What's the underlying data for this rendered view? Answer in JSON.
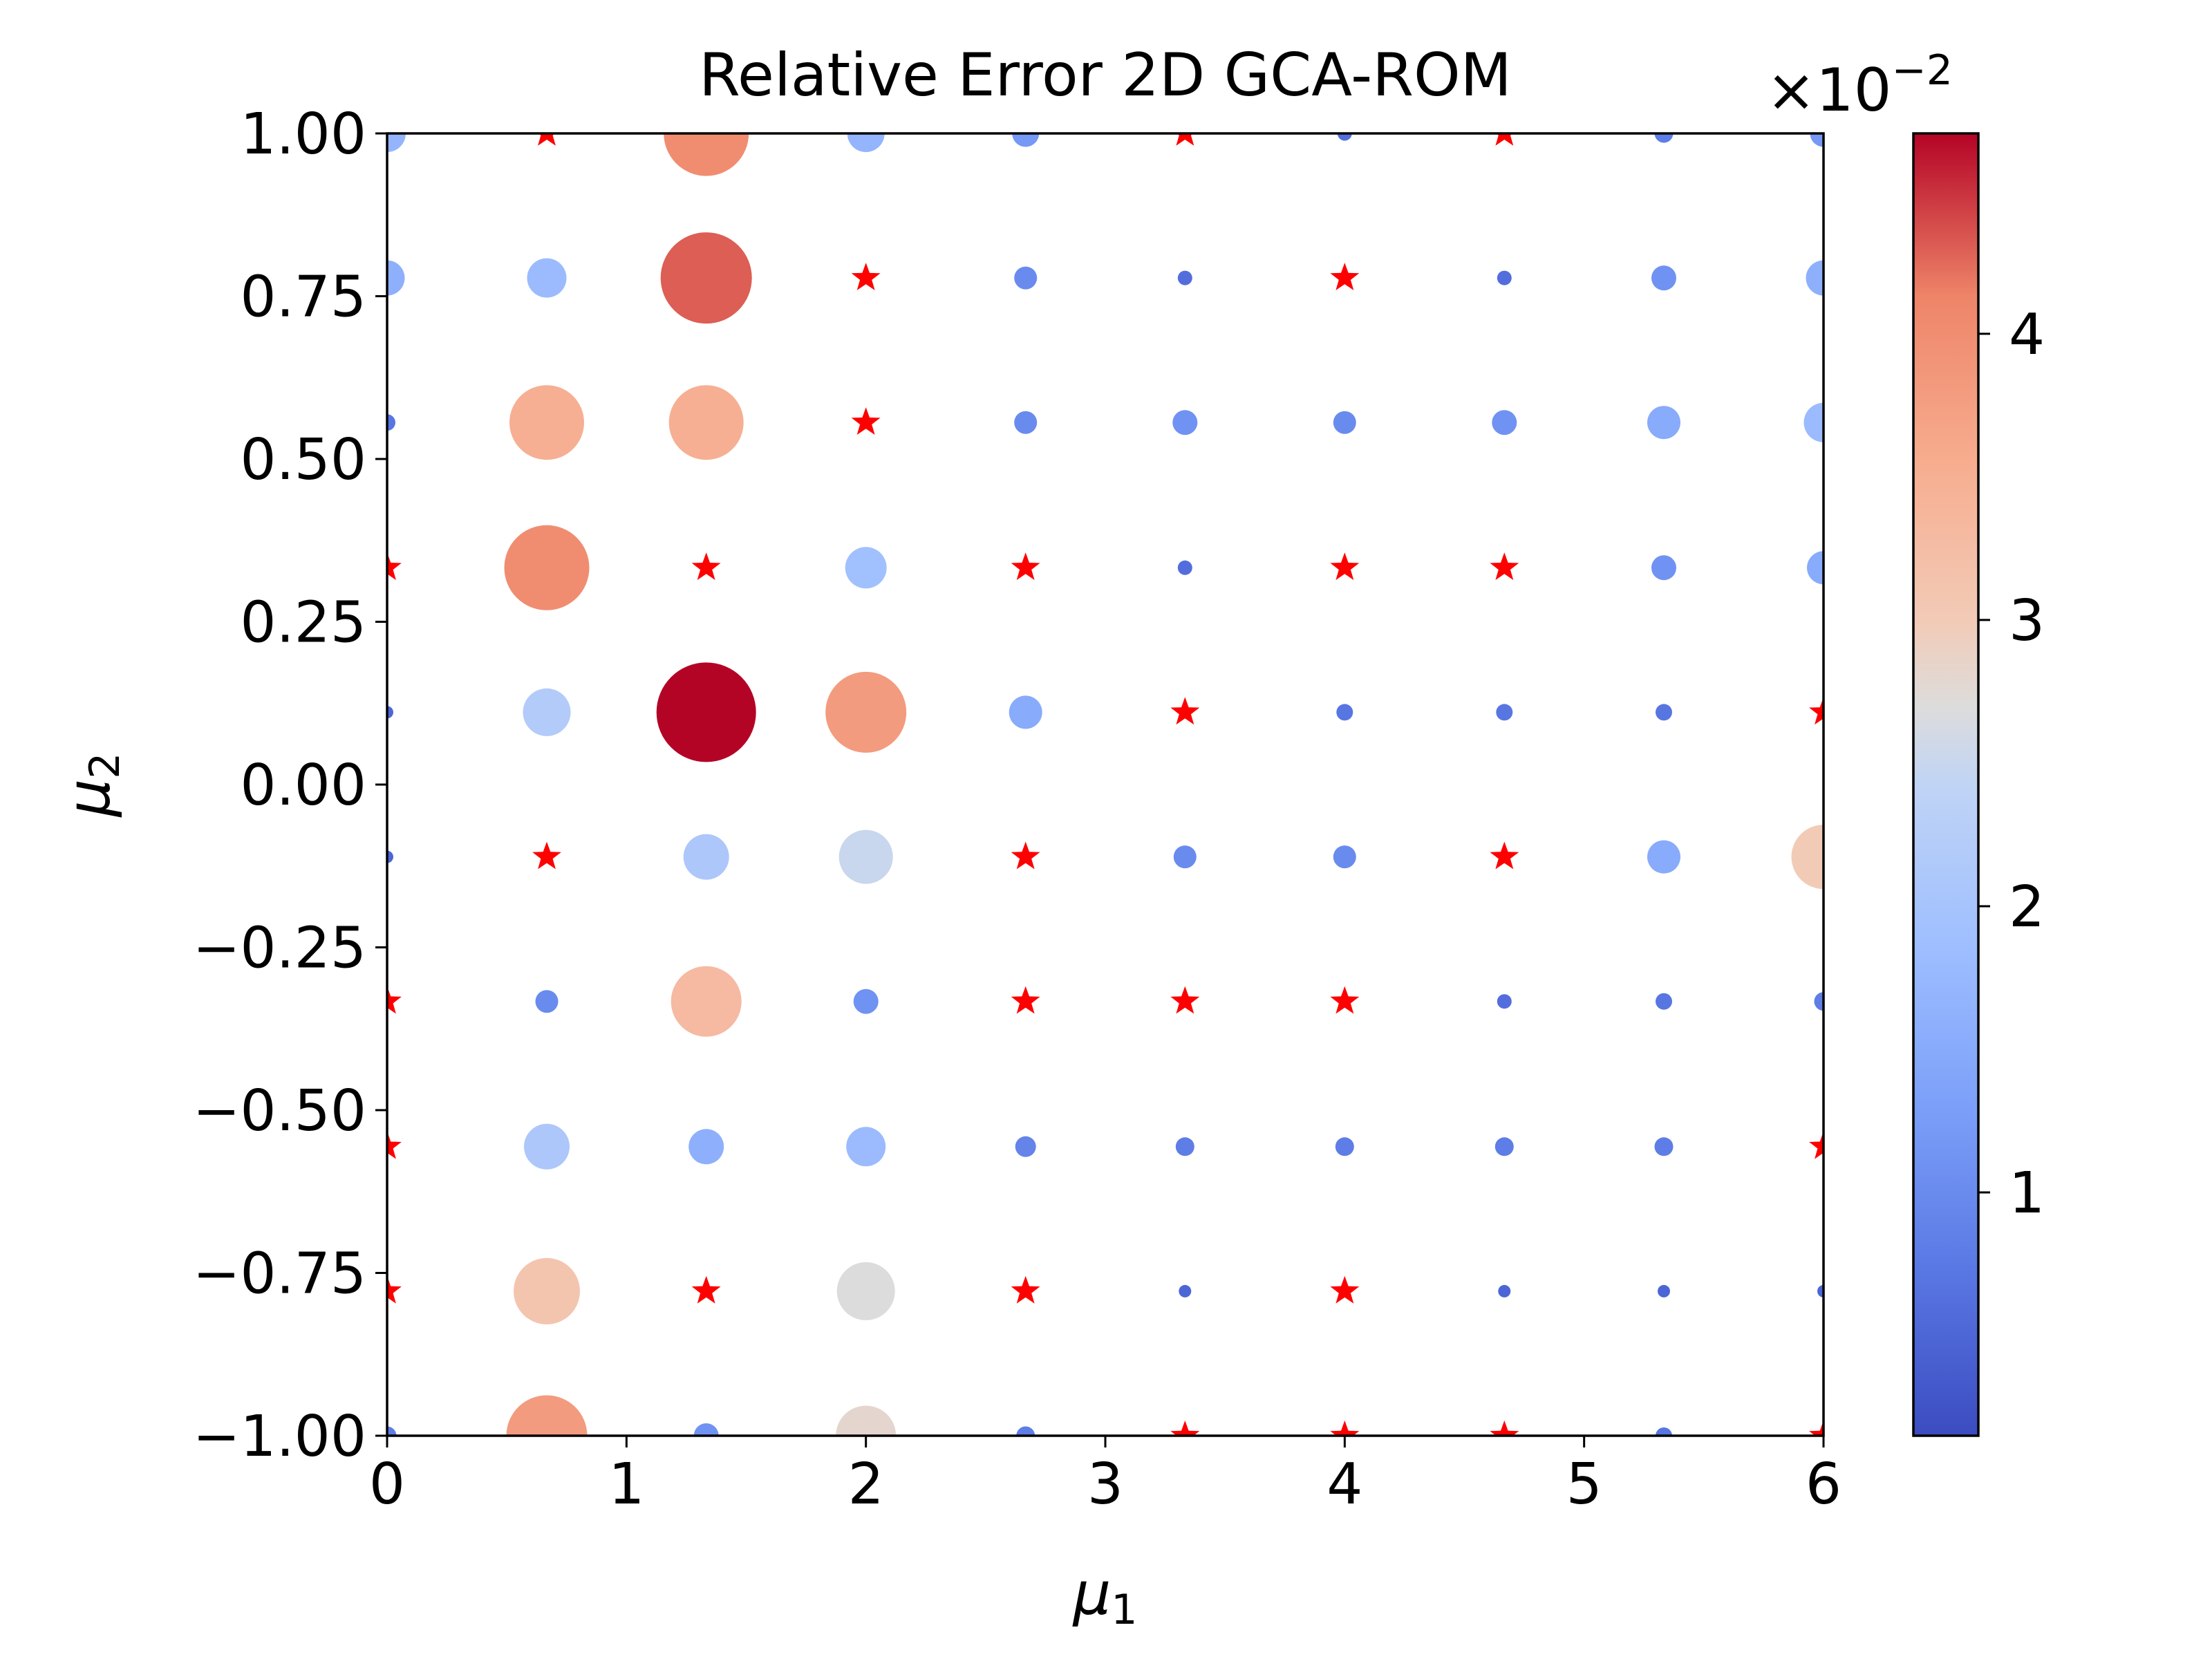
{
  "chart_data": {
    "type": "scatter",
    "title": "Relative Error 2D GCA-ROM",
    "xlabel": "μ1",
    "ylabel": "μ2",
    "xlim": [
      0,
      6
    ],
    "ylim": [
      -1,
      1
    ],
    "xticks": [
      "0",
      "1",
      "2",
      "3",
      "4",
      "5",
      "6"
    ],
    "xtick_values": [
      0,
      1,
      2,
      3,
      4,
      5,
      6
    ],
    "yticks": [
      "1.00",
      "0.75",
      "0.50",
      "0.25",
      "0.00",
      "−0.25",
      "−0.50",
      "−0.75",
      "−1.00"
    ],
    "ytick_values": [
      1.0,
      0.75,
      0.5,
      0.25,
      0.0,
      -0.25,
      -0.5,
      -0.75,
      -1.0
    ],
    "grid": false,
    "colormap": "coolwarm",
    "colorbar": {
      "range": [
        0.0015,
        0.047
      ],
      "ticks": [
        "1",
        "2",
        "3",
        "4"
      ],
      "tick_values": [
        0.01,
        0.02,
        0.03,
        0.04
      ],
      "multiplier_base": "×10",
      "multiplier_exp": "−2"
    },
    "marker_colors": {
      "training": "#ff0000"
    },
    "mu1_grid": [
      0,
      0.667,
      1.333,
      2.0,
      2.667,
      3.333,
      4.0,
      4.667,
      5.333,
      6.0
    ],
    "mu2_grid": [
      1.0,
      0.778,
      0.556,
      0.333,
      0.111,
      -0.111,
      -0.333,
      -0.556,
      -0.778,
      -1.0
    ],
    "error_rows": [
      [
        0.017,
        null,
        0.04,
        0.017,
        0.012,
        null,
        0.006,
        null,
        0.008,
        0.012
      ],
      [
        0.016,
        0.018,
        0.043,
        null,
        0.01,
        0.006,
        null,
        0.006,
        0.011,
        0.016
      ],
      [
        0.007,
        0.035,
        0.035,
        null,
        0.01,
        0.011,
        0.01,
        0.011,
        0.015,
        0.018
      ],
      [
        null,
        0.04,
        null,
        0.019,
        null,
        0.006,
        null,
        null,
        0.011,
        0.015
      ],
      [
        0.005,
        0.022,
        0.047,
        0.038,
        0.015,
        null,
        0.007,
        0.007,
        0.007,
        null
      ],
      [
        0.005,
        null,
        0.021,
        0.025,
        null,
        0.01,
        0.01,
        null,
        0.015,
        0.03
      ],
      [
        null,
        0.01,
        0.033,
        0.011,
        null,
        null,
        null,
        0.006,
        0.007,
        0.008
      ],
      [
        null,
        0.021,
        0.016,
        0.018,
        0.009,
        0.008,
        0.008,
        0.008,
        0.008,
        null
      ],
      [
        null,
        0.031,
        null,
        0.027,
        null,
        0.005,
        null,
        0.005,
        0.005,
        0.005
      ],
      [
        0.008,
        0.038,
        0.011,
        0.028,
        0.008,
        null,
        null,
        null,
        0.007,
        null
      ]
    ]
  }
}
